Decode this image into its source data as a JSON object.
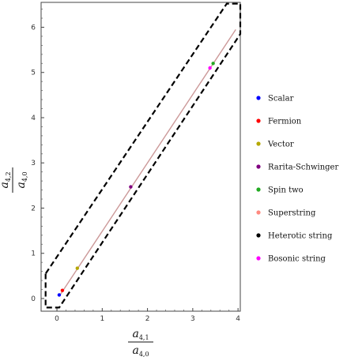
{
  "chart_data": {
    "type": "scatter",
    "xlim": [
      -0.35,
      4.05
    ],
    "ylim": [
      -0.28,
      6.55
    ],
    "x_ticks": [
      "0",
      "1",
      "2",
      "3",
      "4"
    ],
    "y_ticks": [
      "0",
      "1",
      "2",
      "3",
      "4",
      "5",
      "6"
    ],
    "xlabel": {
      "num_main": "a",
      "num_sub": "4,1",
      "den_main": "a",
      "den_sub": "4,0"
    },
    "ylabel": {
      "num_main": "a",
      "num_sub": "4,2",
      "den_main": "a",
      "den_sub": "4,0"
    },
    "legend_position": "right",
    "region_boundary": {
      "style": "dashed",
      "color": "#000000",
      "vertices": [
        [
          -0.25,
          0.55
        ],
        [
          -0.25,
          -0.2
        ],
        [
          0.05,
          -0.2
        ],
        [
          4.05,
          5.85
        ],
        [
          4.05,
          6.52
        ],
        [
          3.75,
          6.52
        ]
      ]
    },
    "line": {
      "color": "#cc9999",
      "from": [
        0.05,
        0.05
      ],
      "to": [
        3.95,
        5.95
      ]
    },
    "series": [
      {
        "name": "Scalar",
        "color": "#0000ff",
        "x": [
          0.05
        ],
        "y": [
          0.08
        ]
      },
      {
        "name": "Fermion",
        "color": "#ff0000",
        "x": [
          0.12
        ],
        "y": [
          0.18
        ]
      },
      {
        "name": "Vector",
        "color": "#b5a800",
        "x": [
          0.45
        ],
        "y": [
          0.67
        ]
      },
      {
        "name": "Rarita-Schwinger",
        "color": "#800080",
        "x": [
          1.63
        ],
        "y": [
          2.47
        ]
      },
      {
        "name": "Spin two",
        "color": "#22aa22",
        "x": [
          3.45
        ],
        "y": [
          5.2
        ]
      },
      {
        "name": "Superstring",
        "color": "#ff8a80",
        "x": [],
        "y": []
      },
      {
        "name": "Heterotic string",
        "color": "#000000",
        "x": [],
        "y": []
      },
      {
        "name": "Bosonic string",
        "color": "#ff00ff",
        "x": [
          3.38
        ],
        "y": [
          5.1
        ]
      }
    ]
  }
}
